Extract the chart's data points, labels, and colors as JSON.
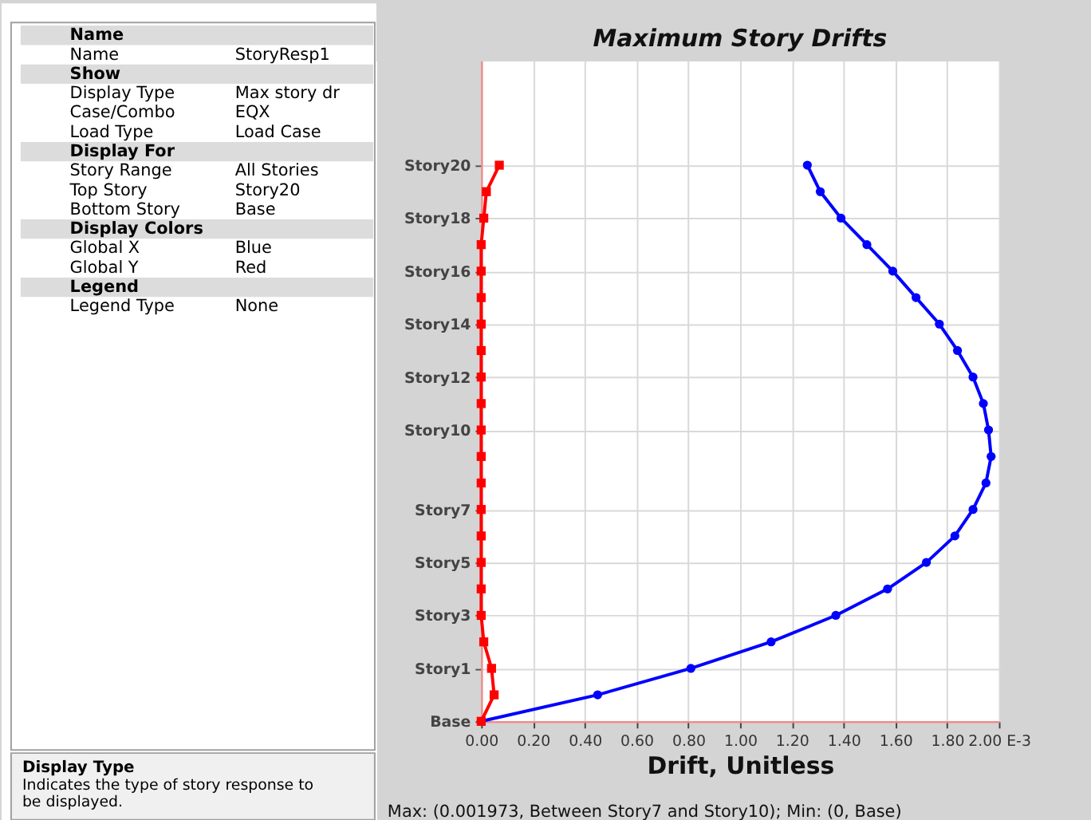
{
  "chart_data": [
    {
      "type": "other",
      "y_categories": [
        "Name",
        "Name",
        "Show",
        "Display Type",
        "Case/Combo",
        "Load Type",
        "Display For",
        "Story Range",
        "Top Story",
        "Bottom Story",
        "Display Colors",
        "Global X",
        "Global Y",
        "Legend",
        "Legend Type"
      ],
      "cell_labels": [
        [
          null
        ],
        [
          "StoryResp1"
        ],
        [
          null
        ],
        [
          "Max story dr"
        ],
        [
          "EQX"
        ],
        [
          "Load Case"
        ],
        [
          null
        ],
        [
          "All Stories"
        ],
        [
          "Story20"
        ],
        [
          "Base"
        ],
        [
          null
        ],
        [
          "Blue"
        ],
        [
          "Red"
        ],
        [
          null
        ],
        [
          "None"
        ]
      ],
      "annotations": [
        "Display Type",
        "Indicates the type of story response to be displayed."
      ]
    },
    {
      "type": "line",
      "title": "Maximum Story Drifts",
      "xlabel": "Drift, Unitless",
      "orientation": "horizontal",
      "categories": [
        "Story20",
        null,
        "Story18",
        null,
        "Story16",
        null,
        "Story14",
        null,
        "Story12",
        null,
        "Story10",
        null,
        null,
        "Story7",
        null,
        "Story5",
        null,
        "Story3",
        null,
        "Story1",
        null,
        "Base"
      ],
      "series": [
        {
          "color": "#0000ff",
          "marker": "circle",
          "values": [
            1.26,
            1.31,
            1.39,
            1.49,
            1.59,
            1.68,
            1.77,
            1.84,
            1.9,
            1.94,
            1.96,
            1.97,
            1.95,
            1.9,
            1.83,
            1.72,
            1.57,
            1.37,
            1.12,
            0.81,
            0.45,
            0
          ]
        },
        {
          "color": "#ff0000",
          "marker": "square",
          "values": [
            0.07,
            0.02,
            0.01,
            0,
            0,
            0,
            0,
            0,
            0,
            0,
            0,
            0,
            0,
            0,
            0,
            0,
            0,
            0,
            0.01,
            0.04,
            0.05,
            0
          ]
        }
      ],
      "xlim": [
        0,
        2
      ],
      "xticks": [
        {
          "value": 0,
          "label": "0.00"
        },
        {
          "value": 0.2,
          "label": "0.20"
        },
        {
          "value": 0.4,
          "label": "0.40"
        },
        {
          "value": 0.6,
          "label": "0.60"
        },
        {
          "value": 0.8,
          "label": "0.80"
        },
        {
          "value": 1.0,
          "label": "1.00"
        },
        {
          "value": 1.2,
          "label": "1.20"
        },
        {
          "value": 1.4,
          "label": "1.40"
        },
        {
          "value": 1.6,
          "label": "1.60"
        },
        {
          "value": 1.8,
          "label": "1.80"
        },
        {
          "value": 2.0,
          "label": "2.00 E-3"
        }
      ],
      "grid": true,
      "line_style": "solid",
      "annotations": [
        "Max: (0.001973, Between Story7 and Story10); Min: (0, Base)"
      ]
    }
  ]
}
